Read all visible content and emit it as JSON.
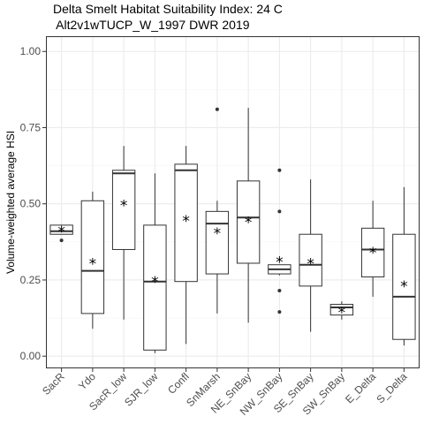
{
  "chart_data": {
    "type": "boxplot",
    "title_line1": "Delta Smelt Habitat Suitability Index: 24 C",
    "title_line2": " Alt2v1wTUCP_W_1997 DWR 2019",
    "xlabel": "",
    "ylabel": "Volume-weighted average HSI",
    "ylim": [
      -0.04,
      1.05
    ],
    "yticks": [
      0.0,
      0.25,
      0.5,
      0.75,
      1.0
    ],
    "ytick_labels": [
      "0.00",
      "0.25",
      "0.50",
      "0.75",
      "1.00"
    ],
    "grid": true,
    "mean_marker": "*",
    "categories": [
      "SacR",
      "Ydo",
      "SacR_low",
      "SJR_low",
      "Confl",
      "SnMarsh",
      "NE_SnBay",
      "NW_SnBay",
      "SE_SnBay",
      "SW_SnBay",
      "E_Delta",
      "S_Delta"
    ],
    "boxes": [
      {
        "name": "SacR",
        "whisker_low": 0.4,
        "q1": 0.4,
        "median": 0.41,
        "q3": 0.43,
        "whisker_high": 0.43,
        "mean": 0.415,
        "outliers": [
          0.38
        ]
      },
      {
        "name": "Ydo",
        "whisker_low": 0.09,
        "q1": 0.14,
        "median": 0.28,
        "q3": 0.51,
        "whisker_high": 0.54,
        "mean": 0.31,
        "outliers": []
      },
      {
        "name": "SacR_low",
        "whisker_low": 0.12,
        "q1": 0.35,
        "median": 0.6,
        "q3": 0.61,
        "whisker_high": 0.69,
        "mean": 0.5,
        "outliers": []
      },
      {
        "name": "SJR_low",
        "whisker_low": 0.01,
        "q1": 0.02,
        "median": 0.245,
        "q3": 0.43,
        "whisker_high": 0.6,
        "mean": 0.25,
        "outliers": []
      },
      {
        "name": "Confl",
        "whisker_low": 0.04,
        "q1": 0.245,
        "median": 0.61,
        "q3": 0.63,
        "whisker_high": 0.69,
        "mean": 0.45,
        "outliers": []
      },
      {
        "name": "SnMarsh",
        "whisker_low": 0.14,
        "q1": 0.27,
        "median": 0.435,
        "q3": 0.475,
        "whisker_high": 0.51,
        "mean": 0.41,
        "outliers": [
          0.81
        ]
      },
      {
        "name": "NE_SnBay",
        "whisker_low": 0.11,
        "q1": 0.305,
        "median": 0.455,
        "q3": 0.575,
        "whisker_high": 0.815,
        "mean": 0.445,
        "outliers": []
      },
      {
        "name": "NW_SnBay",
        "whisker_low": 0.265,
        "q1": 0.27,
        "median": 0.285,
        "q3": 0.3,
        "whisker_high": 0.3,
        "mean": 0.315,
        "outliers": [
          0.61,
          0.475,
          0.215,
          0.145
        ]
      },
      {
        "name": "SE_SnBay",
        "whisker_low": 0.08,
        "q1": 0.23,
        "median": 0.3,
        "q3": 0.4,
        "whisker_high": 0.58,
        "mean": 0.31,
        "outliers": []
      },
      {
        "name": "SW_SnBay",
        "whisker_low": 0.12,
        "q1": 0.135,
        "median": 0.16,
        "q3": 0.17,
        "whisker_high": 0.18,
        "mean": 0.15,
        "outliers": []
      },
      {
        "name": "E_Delta",
        "whisker_low": 0.195,
        "q1": 0.26,
        "median": 0.35,
        "q3": 0.42,
        "whisker_high": 0.51,
        "mean": 0.345,
        "outliers": []
      },
      {
        "name": "S_Delta",
        "whisker_low": 0.035,
        "q1": 0.055,
        "median": 0.195,
        "q3": 0.4,
        "whisker_high": 0.555,
        "mean": 0.235,
        "outliers": []
      }
    ]
  },
  "colors": {
    "panel_border": "#333333",
    "grid_major": "#ebebeb",
    "grid_minor": "#f5f5f5",
    "box_line": "#333333",
    "box_fill": "#ffffff",
    "tick_text": "#4d4d4d"
  }
}
